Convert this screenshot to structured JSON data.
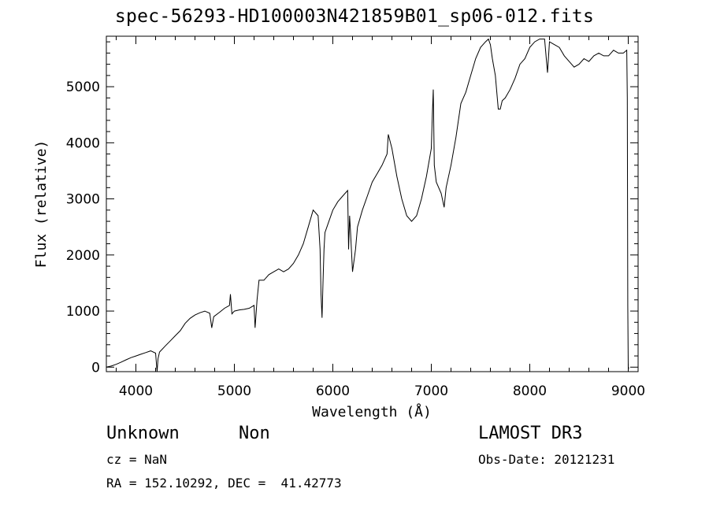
{
  "title": "spec-56293-HD100003N421859B01_sp06-012.fits",
  "info": {
    "class": "Unknown",
    "subclass": "Non",
    "survey": "LAMOST DR3",
    "cz": "cz = NaN",
    "obs_date": "Obs-Date: 20121231",
    "coords": "RA = 152.10292, DEC =  41.42773"
  },
  "chart_data": {
    "type": "line",
    "title": "spec-56293-HD100003N421859B01_sp06-012.fits",
    "xlabel": "Wavelength (Å)",
    "ylabel": "Flux (relative)",
    "xlim": [
      3700,
      9100
    ],
    "ylim": [
      -80,
      5900
    ],
    "xticks": [
      4000,
      5000,
      6000,
      7000,
      8000,
      9000
    ],
    "yticks": [
      0,
      1000,
      2000,
      3000,
      4000,
      5000
    ],
    "grid": false,
    "color": "#000000",
    "series": [
      {
        "x": [
          3700,
          3750,
          3800,
          3850,
          3900,
          3950,
          4000,
          4050,
          4100,
          4150,
          4200,
          4215,
          4225,
          4240,
          4300,
          4350,
          4400,
          4450,
          4500,
          4550,
          4600,
          4650,
          4700,
          4750,
          4770,
          4790,
          4850,
          4900,
          4950,
          4960,
          4975,
          5000,
          5050,
          5100,
          5150,
          5200,
          5210,
          5230,
          5250,
          5300,
          5350,
          5400,
          5450,
          5500,
          5550,
          5600,
          5650,
          5700,
          5750,
          5800,
          5850,
          5870,
          5880,
          5890,
          5900,
          5910,
          5920,
          5960,
          6000,
          6050,
          6100,
          6150,
          6160,
          6170,
          6180,
          6200,
          6230,
          6250,
          6300,
          6350,
          6400,
          6450,
          6500,
          6550,
          6563,
          6600,
          6650,
          6700,
          6750,
          6800,
          6850,
          6900,
          6950,
          7000,
          7010,
          7020,
          7030,
          7050,
          7100,
          7130,
          7150,
          7200,
          7250,
          7300,
          7350,
          7400,
          7450,
          7500,
          7550,
          7580,
          7600,
          7620,
          7650,
          7680,
          7700,
          7720,
          7750,
          7800,
          7850,
          7900,
          7950,
          8000,
          8050,
          8100,
          8150,
          8180,
          8200,
          8250,
          8300,
          8350,
          8400,
          8450,
          8500,
          8550,
          8600,
          8650,
          8700,
          8750,
          8800,
          8850,
          8900,
          8950,
          8985,
          8990,
          8995,
          9000,
          9005
        ],
        "values": [
          0,
          20,
          50,
          90,
          130,
          170,
          200,
          230,
          260,
          290,
          250,
          -80,
          150,
          270,
          380,
          470,
          560,
          650,
          780,
          870,
          930,
          970,
          1000,
          960,
          700,
          900,
          980,
          1050,
          1100,
          1300,
          950,
          1000,
          1020,
          1030,
          1050,
          1100,
          700,
          1200,
          1550,
          1550,
          1650,
          1700,
          1750,
          1700,
          1750,
          1850,
          2000,
          2200,
          2500,
          2800,
          2700,
          2100,
          1300,
          880,
          1500,
          2100,
          2400,
          2600,
          2800,
          2950,
          3050,
          3150,
          2100,
          2700,
          2400,
          1700,
          2100,
          2500,
          2800,
          3050,
          3300,
          3450,
          3600,
          3800,
          4150,
          3900,
          3400,
          3000,
          2700,
          2600,
          2700,
          3000,
          3400,
          3900,
          4500,
          4950,
          3600,
          3300,
          3100,
          2850,
          3200,
          3600,
          4100,
          4700,
          4900,
          5200,
          5500,
          5700,
          5800,
          5850,
          5750,
          5500,
          5200,
          4600,
          4600,
          4750,
          4800,
          4950,
          5150,
          5400,
          5500,
          5700,
          5800,
          5850,
          5850,
          5250,
          5800,
          5750,
          5700,
          5550,
          5450,
          5350,
          5400,
          5500,
          5450,
          5550,
          5600,
          5550,
          5550,
          5650,
          5600,
          5600,
          5650,
          4800,
          1100,
          -50,
          0
        ]
      }
    ]
  }
}
